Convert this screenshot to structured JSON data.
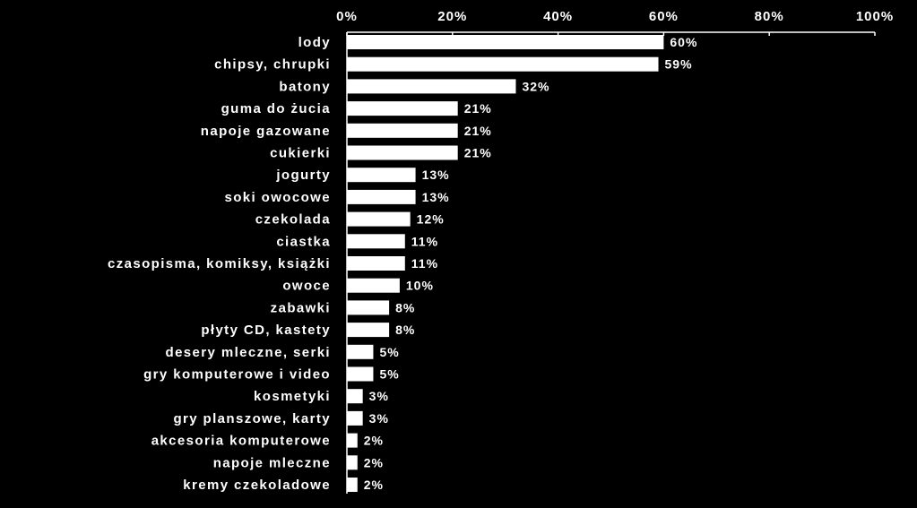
{
  "chart_data": {
    "type": "bar",
    "orientation": "horizontal",
    "title": "",
    "xlabel": "",
    "ylabel": "",
    "xlim": [
      0,
      100
    ],
    "x_ticks": [
      "0%",
      "20%",
      "40%",
      "60%",
      "80%",
      "100%"
    ],
    "grid": false,
    "legend": "none",
    "colors": {
      "background": "#000000",
      "bar": "#ffffff",
      "text": "#ffffff",
      "axis": "#ffffff"
    },
    "categories": [
      "lody",
      "chipsy, chrupki",
      "batony",
      "guma do żucia",
      "napoje gazowane",
      "cukierki",
      "jogurty",
      "soki owocowe",
      "czekolada",
      "ciastka",
      "czasopisma, komiksy, książki",
      "owoce",
      "zabawki",
      "płyty CD, kastety",
      "desery mleczne, serki",
      "gry komputerowe i video",
      "kosmetyki",
      "gry planszowe, karty",
      "akcesoria komputerowe",
      "napoje mleczne",
      "kremy czekoladowe"
    ],
    "values": [
      60,
      59,
      32,
      21,
      21,
      21,
      13,
      13,
      12,
      11,
      11,
      10,
      8,
      8,
      5,
      5,
      3,
      3,
      2,
      2,
      2
    ],
    "value_labels": [
      "60%",
      "59%",
      "32%",
      "21%",
      "21%",
      "21%",
      "13%",
      "13%",
      "12%",
      "11%",
      "11%",
      "10%",
      "8%",
      "8%",
      "5%",
      "5%",
      "3%",
      "3%",
      "2%",
      "2%",
      "2%"
    ]
  }
}
